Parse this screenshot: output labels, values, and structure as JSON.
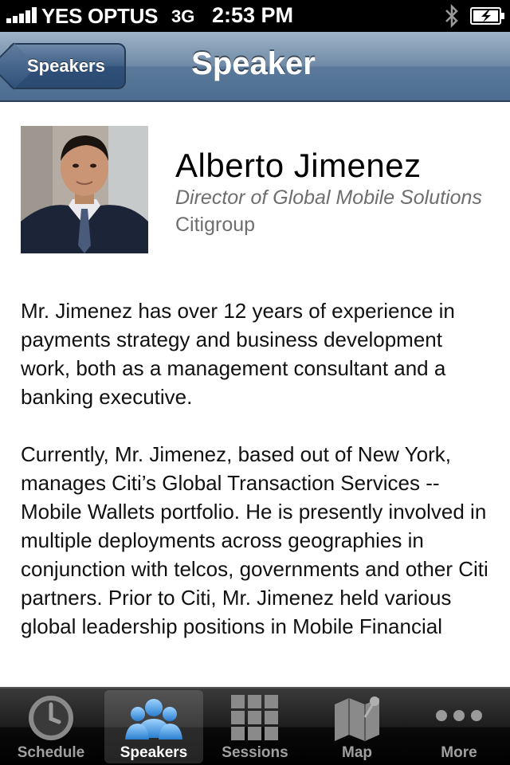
{
  "status_bar": {
    "carrier": "YES OPTUS",
    "network": "3G",
    "time": "2:53 PM"
  },
  "nav": {
    "back_label": "Speakers",
    "title": "Speaker"
  },
  "speaker": {
    "name": "Alberto Jimenez",
    "title": "Director of Global Mobile Solutions",
    "organization": "Citigroup",
    "bio": [
      "Mr. Jimenez has over 12 years of experience in payments strategy and business development work, both as a management consultant and a banking executive.",
      "Currently, Mr. Jimenez, based out of New York, manages Citi’s Global Transaction Services -- Mobile Wallets portfolio. He is presently involved in multiple deployments across geographies in conjunction with telcos, governments and other Citi partners. Prior to Citi, Mr. Jimenez held various global leadership positions in Mobile Financial"
    ]
  },
  "tabs": [
    {
      "label": "Schedule",
      "icon": "clock-icon"
    },
    {
      "label": "Speakers",
      "icon": "people-icon",
      "active": true
    },
    {
      "label": "Sessions",
      "icon": "grid-icon"
    },
    {
      "label": "Map",
      "icon": "map-icon"
    },
    {
      "label": "More",
      "icon": "more-icon"
    }
  ],
  "colors": {
    "nav_blue": "#5b7a9b",
    "tab_active_blue": "#4aa3e8",
    "secondary_text": "#6e6e6e"
  }
}
